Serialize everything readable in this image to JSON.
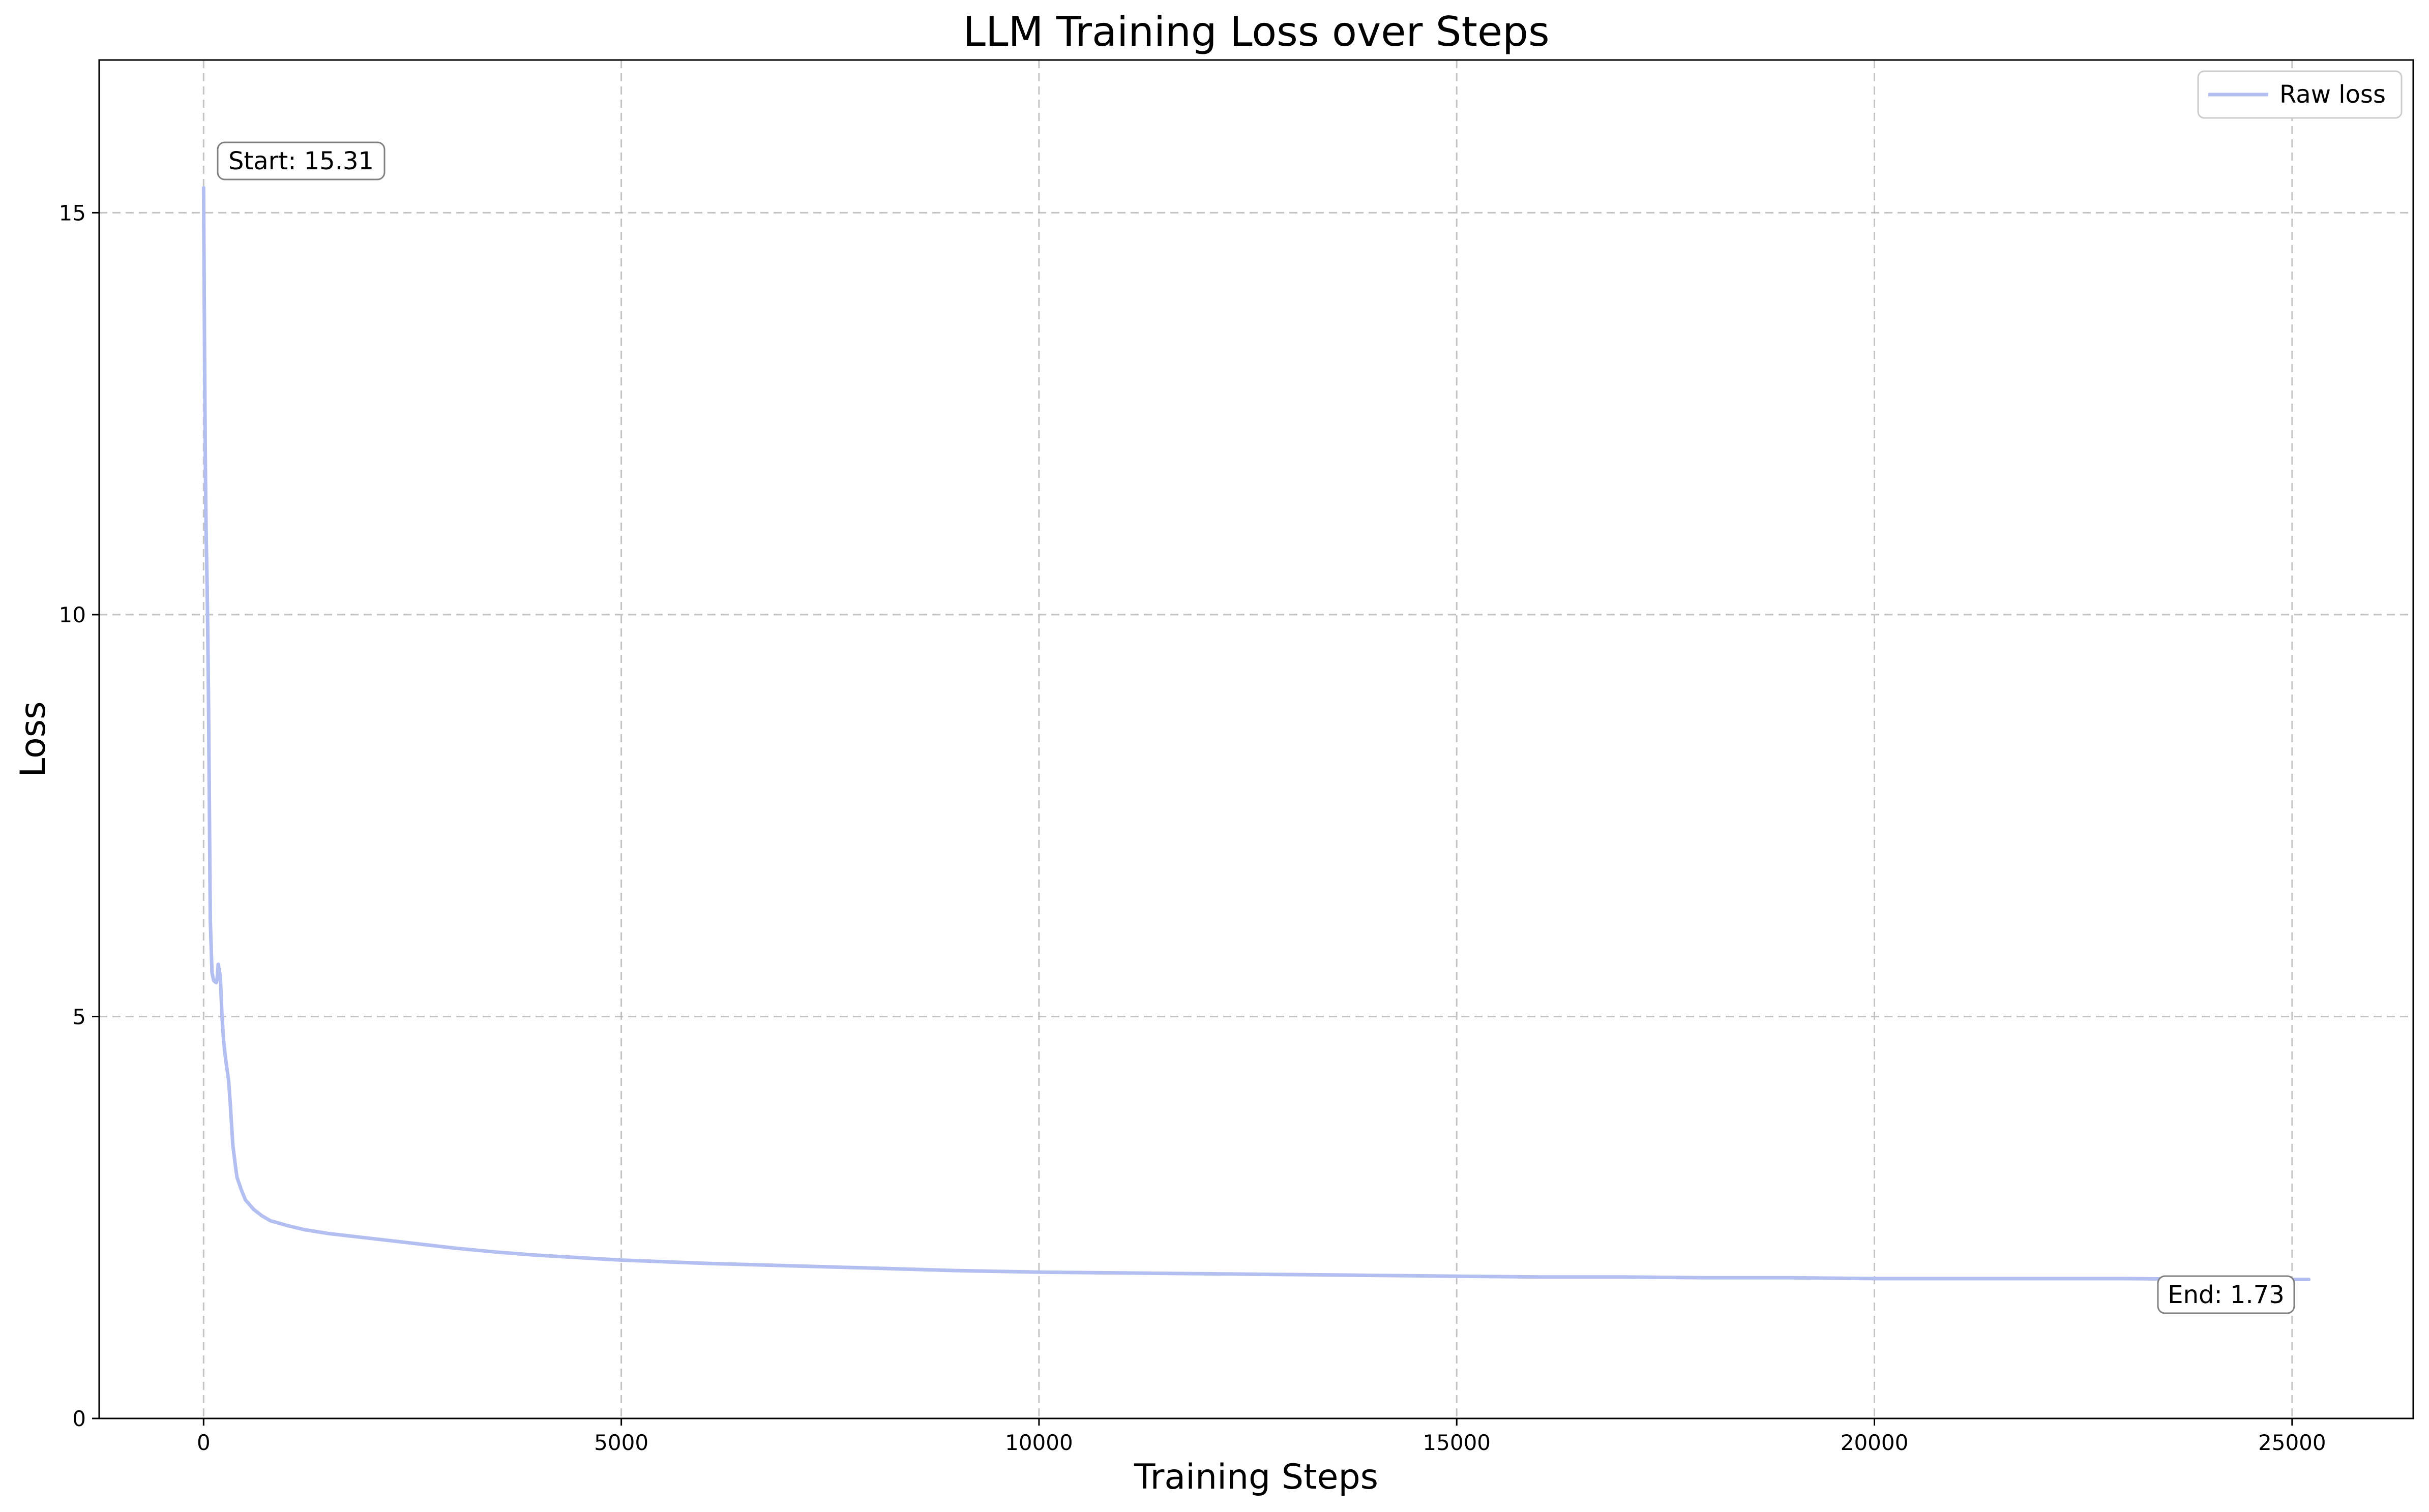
{
  "chart_data": {
    "type": "line",
    "title": "LLM Training Loss over Steps",
    "xlabel": "Training Steps",
    "ylabel": "Loss",
    "xlim": [
      -1250,
      26450
    ],
    "ylim": [
      0,
      16.9
    ],
    "x_ticks": [
      0,
      5000,
      10000,
      15000,
      20000,
      25000
    ],
    "y_ticks": [
      0,
      5,
      10,
      15
    ],
    "grid": true,
    "legend": "top-right",
    "series": [
      {
        "name": "Raw loss",
        "color": "#b3bff0",
        "x": [
          0,
          10,
          20,
          30,
          40,
          50,
          60,
          70,
          80,
          100,
          120,
          150,
          160,
          175,
          200,
          220,
          240,
          260,
          280,
          300,
          320,
          350,
          380,
          400,
          450,
          500,
          600,
          700,
          800,
          1000,
          1200,
          1500,
          2000,
          2500,
          3000,
          3500,
          4000,
          5000,
          6000,
          7000,
          8000,
          9000,
          10000,
          11000,
          12000,
          13000,
          14000,
          15000,
          16000,
          17000,
          18000,
          19000,
          20000,
          21000,
          22000,
          23000,
          24000,
          25000,
          25200
        ],
        "values": [
          15.31,
          13.5,
          12.0,
          11.0,
          10.5,
          9.8,
          8.8,
          7.5,
          6.2,
          5.55,
          5.45,
          5.42,
          5.45,
          5.65,
          5.5,
          5.0,
          4.7,
          4.5,
          4.35,
          4.2,
          3.9,
          3.4,
          3.15,
          3.0,
          2.85,
          2.72,
          2.6,
          2.52,
          2.46,
          2.4,
          2.35,
          2.3,
          2.24,
          2.18,
          2.12,
          2.07,
          2.03,
          1.97,
          1.93,
          1.9,
          1.87,
          1.84,
          1.82,
          1.81,
          1.8,
          1.79,
          1.78,
          1.77,
          1.76,
          1.76,
          1.75,
          1.75,
          1.74,
          1.74,
          1.74,
          1.74,
          1.73,
          1.73,
          1.73
        ]
      }
    ],
    "annotations": [
      {
        "text": "Start: 15.31",
        "x": 0,
        "y": 15.31
      },
      {
        "text": "End: 1.73",
        "x": 25200,
        "y": 1.73
      }
    ]
  }
}
